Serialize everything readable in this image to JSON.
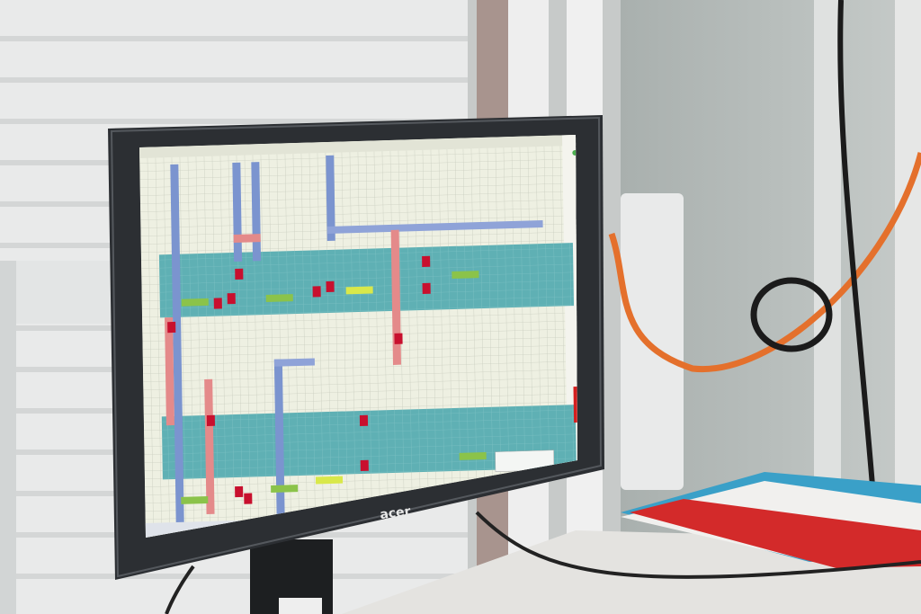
{
  "brand": "acer"
}
